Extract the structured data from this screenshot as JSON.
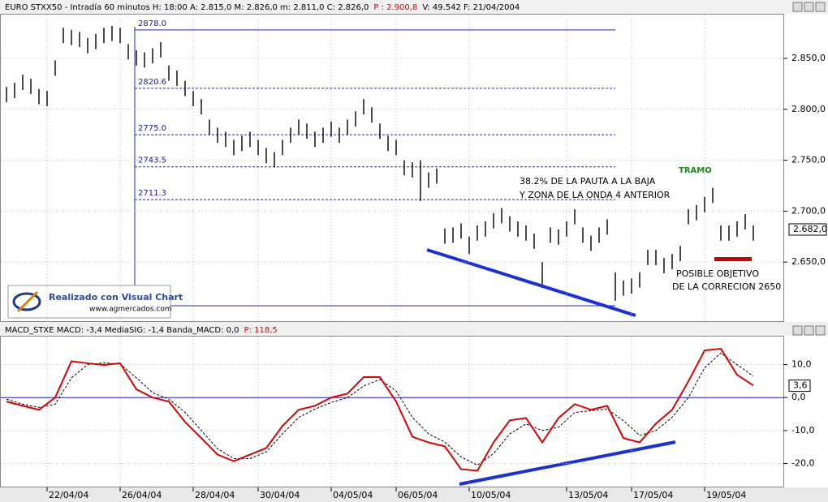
{
  "chart_data": [
    {
      "type": "range-bar",
      "title": "EURO STXX50 - Intradía 60 minutos  H: 18:00  A: 2.815,0  M: 2.826,0  m: 2.811,0  C: 2.826,0",
      "title_p": "P : 2.900,8",
      "title_tail": "V: 49.542  F: 21/04/2004",
      "categories": [
        null,
        null,
        null,
        null,
        null,
        "22/04/04",
        null,
        null,
        null,
        null,
        null,
        null,
        null,
        null,
        "26/04/04",
        null,
        null,
        null,
        null,
        null,
        null,
        null,
        null,
        "28/04/04",
        null,
        null,
        null,
        null,
        null,
        null,
        null,
        "30/04/04",
        null,
        null,
        null,
        null,
        null,
        null,
        null,
        null,
        "04/05/04",
        null,
        null,
        null,
        null,
        null,
        null,
        null,
        "06/05/04",
        null,
        null,
        null,
        null,
        null,
        null,
        null,
        null,
        "10/05/04",
        null,
        null,
        null,
        null,
        null,
        null,
        null,
        null,
        null,
        null,
        null,
        "13/05/04",
        null,
        null,
        null,
        null,
        null,
        null,
        null,
        "17/05/04",
        null,
        null,
        null,
        null,
        null,
        null,
        null,
        null,
        "19/05/04",
        null,
        null,
        null,
        null,
        null,
        null
      ],
      "high": [
        2822,
        2826,
        2834,
        2830,
        2820,
        2818,
        2848,
        2880,
        2878,
        2876,
        2870,
        2874,
        2880,
        2882,
        2880,
        2864,
        2858,
        2856,
        2860,
        2866,
        2843,
        2838,
        2828,
        2818,
        2810,
        2790,
        2782,
        2778,
        2770,
        2774,
        2778,
        2770,
        2762,
        2758,
        2770,
        2782,
        2790,
        2786,
        2778,
        2782,
        2788,
        2782,
        2790,
        2798,
        2810,
        2802,
        2786,
        2774,
        2770,
        2750,
        2748,
        2750,
        2738,
        2742,
        2683,
        2684,
        2688,
        2675,
        2686,
        2690,
        2698,
        2703,
        2695,
        2690,
        2686,
        2678,
        2650,
        2684,
        2682,
        2690,
        2702,
        2684,
        2676,
        2684,
        2692,
        2640,
        2632,
        2634,
        2640,
        2662,
        2662,
        2654,
        2658,
        2666,
        2702,
        2706,
        2714,
        2723,
        2686,
        2686,
        2690,
        2697,
        2686
      ],
      "low": [
        2807,
        2811,
        2819,
        2815,
        2805,
        2803,
        2833,
        2865,
        2863,
        2861,
        2855,
        2859,
        2865,
        2867,
        2865,
        2849,
        2843,
        2841,
        2845,
        2851,
        2828,
        2823,
        2813,
        2803,
        2795,
        2775,
        2767,
        2763,
        2755,
        2759,
        2763,
        2755,
        2747,
        2743,
        2755,
        2767,
        2775,
        2771,
        2763,
        2767,
        2773,
        2767,
        2775,
        2783,
        2795,
        2787,
        2771,
        2759,
        2755,
        2735,
        2733,
        2710,
        2723,
        2727,
        2668,
        2669,
        2673,
        2658,
        2671,
        2675,
        2683,
        2688,
        2680,
        2675,
        2671,
        2663,
        2628,
        2669,
        2667,
        2675,
        2687,
        2669,
        2661,
        2669,
        2677,
        2612,
        2617,
        2619,
        2625,
        2647,
        2647,
        2639,
        2643,
        2651,
        2687,
        2691,
        2699,
        2708,
        2671,
        2671,
        2675,
        2682,
        2671
      ],
      "color": "#000000",
      "ylim": [
        2592,
        2893
      ],
      "yticks": [
        {
          "value": 2650,
          "label": "2.650,0"
        },
        {
          "value": 2700,
          "label": "2.700,0"
        },
        {
          "value": 2750,
          "label": "2.750,0"
        },
        {
          "value": 2800,
          "label": "2.800,0"
        },
        {
          "value": 2850,
          "label": "2.850,0"
        }
      ],
      "grid": true,
      "levels": [
        {
          "value": 2878,
          "label": "2878.0"
        },
        {
          "value": 2820.6,
          "label": "2820.6"
        },
        {
          "value": 2775,
          "label": "2775.0"
        },
        {
          "value": 2743.5,
          "label": "2743.5"
        },
        {
          "value": 2711.3,
          "label": "2711.3"
        }
      ],
      "last": {
        "value": 2682,
        "label": "2.682,0"
      },
      "annotations": [
        "38.2% DE LA PAUTA A  LA BAJA",
        "Y ZONA DE LA ONDA 4 ANTERIOR",
        "TRAMO",
        "POSIBLE OBJETIVO",
        "DE LA CORRECION 2650"
      ],
      "logo": [
        "Realizado con Visual Chart",
        "www.agmercados.com"
      ]
    },
    {
      "type": "line",
      "title": "MACD_STXE  MACD: -3,4  MediaSIG: -1,4  Banda_MACD: 0,0",
      "title_p": "P: 118,5",
      "series": [
        {
          "name": "MACD",
          "color": "#e00000",
          "values": [
            -1.2,
            -2.5,
            -3.7,
            0,
            11,
            10.4,
            9.9,
            10.4,
            2.5,
            0,
            -1.2,
            -7.4,
            -12.3,
            -17.3,
            -19.3,
            -17.3,
            -15.3,
            -8.6,
            -3.7,
            -2.5,
            0,
            1.2,
            6.2,
            6.2,
            -1.2,
            -11.9,
            -13.6,
            -14.8,
            -21.7,
            -22.2,
            -13.6,
            -6.9,
            -6.2,
            -13.6,
            -6.2,
            -2,
            -3.7,
            -2.5,
            -12.3,
            -13.6,
            -7.9,
            -3.7,
            4.9,
            14.3,
            14.8,
            6.9,
            3.7
          ]
        },
        {
          "name": "MediaSIG",
          "color": "#000000",
          "values": [
            -0.5,
            -2,
            -3,
            -2,
            6,
            10,
            10.5,
            10.2,
            6,
            1.5,
            -0.5,
            -4.5,
            -10,
            -15.5,
            -18.5,
            -18.5,
            -16.5,
            -11,
            -6,
            -3.5,
            -1.5,
            0,
            3.5,
            5.5,
            2,
            -6,
            -11,
            -13.5,
            -18,
            -20.5,
            -17,
            -11,
            -8,
            -10,
            -9,
            -4.5,
            -4,
            -3.5,
            -7,
            -11.5,
            -10,
            -6,
            0,
            9,
            13.5,
            10,
            6.5
          ]
        }
      ],
      "ylim": [
        -27,
        18.5
      ],
      "yticks": [
        {
          "value": -20,
          "label": "-20,0"
        },
        {
          "value": -10,
          "label": "-10,0"
        },
        {
          "value": 0,
          "label": "0,0"
        },
        {
          "value": 10,
          "label": "10,0"
        }
      ],
      "grid": true,
      "last": {
        "value": 3.6,
        "label": "3,6"
      }
    }
  ]
}
